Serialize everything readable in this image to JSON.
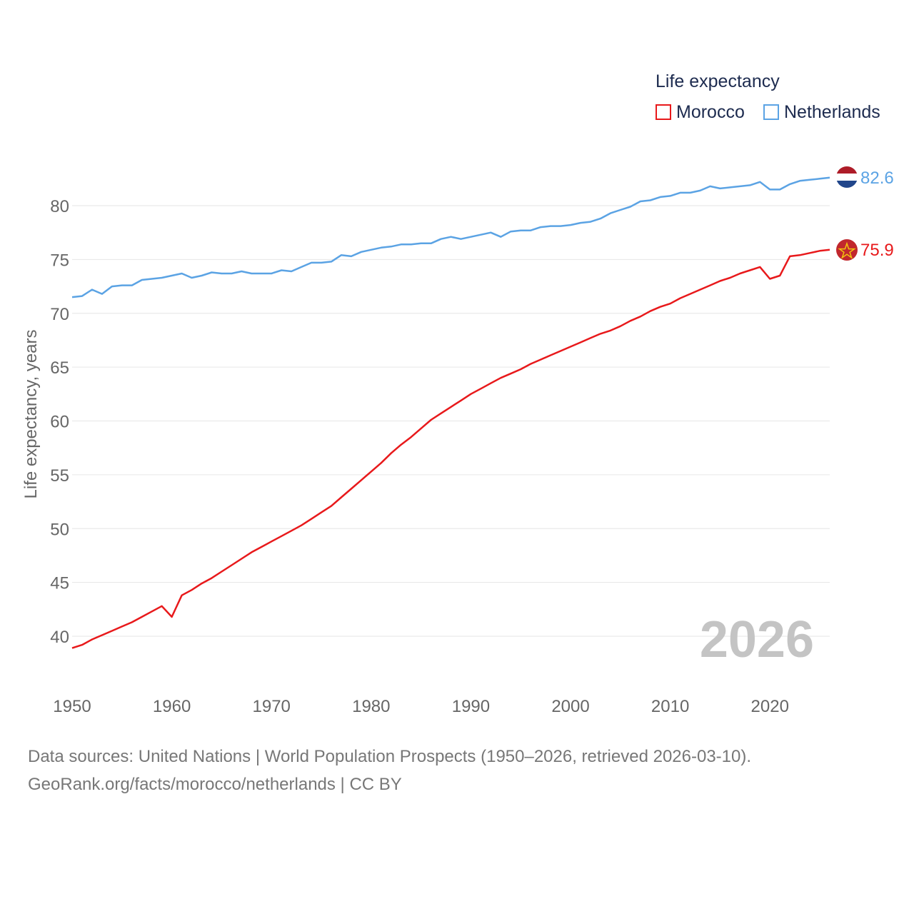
{
  "colors": {
    "morocco": "#e8191b",
    "netherlands": "#5ba3e4",
    "grid": "#e6e6e6",
    "tick_text": "#666666",
    "year_watermark": "#c4c4c4"
  },
  "legend": {
    "title": "Life expectancy",
    "items": [
      {
        "label": "Morocco",
        "color": "#e8191b"
      },
      {
        "label": "Netherlands",
        "color": "#5ba3e4"
      }
    ]
  },
  "current_year": "2026",
  "source": {
    "line1": "Data sources: United Nations | World Population Prospects (1950–2026, retrieved 2026-03-10).",
    "line2": "GeoRank.org/facts/morocco/netherlands | CC BY"
  },
  "chart_data": {
    "type": "line",
    "title": "Life expectancy",
    "xlabel": "",
    "ylabel": "Life expectancy, years",
    "xlim": [
      1950,
      2026
    ],
    "ylim": [
      37,
      84
    ],
    "x_ticks": [
      "1950",
      "1960",
      "1970",
      "1980",
      "1990",
      "2000",
      "2010",
      "2020"
    ],
    "y_ticks": [
      "40",
      "45",
      "50",
      "55",
      "60",
      "65",
      "70",
      "75",
      "80"
    ],
    "grid": true,
    "legend_position": "top-right",
    "x": [
      1950,
      1951,
      1952,
      1953,
      1954,
      1955,
      1956,
      1957,
      1958,
      1959,
      1960,
      1961,
      1962,
      1963,
      1964,
      1965,
      1966,
      1967,
      1968,
      1969,
      1970,
      1971,
      1972,
      1973,
      1974,
      1975,
      1976,
      1977,
      1978,
      1979,
      1980,
      1981,
      1982,
      1983,
      1984,
      1985,
      1986,
      1987,
      1988,
      1989,
      1990,
      1991,
      1992,
      1993,
      1994,
      1995,
      1996,
      1997,
      1998,
      1999,
      2000,
      2001,
      2002,
      2003,
      2004,
      2005,
      2006,
      2007,
      2008,
      2009,
      2010,
      2011,
      2012,
      2013,
      2014,
      2015,
      2016,
      2017,
      2018,
      2019,
      2020,
      2021,
      2022,
      2023,
      2024,
      2025,
      2026
    ],
    "series": [
      {
        "name": "Morocco",
        "end_label": "75.9",
        "values": [
          38.9,
          39.2,
          39.7,
          40.1,
          40.5,
          40.9,
          41.3,
          41.8,
          42.3,
          42.8,
          41.8,
          43.8,
          44.3,
          44.9,
          45.4,
          46.0,
          46.6,
          47.2,
          47.8,
          48.3,
          48.8,
          49.3,
          49.8,
          50.3,
          50.9,
          51.5,
          52.1,
          52.9,
          53.7,
          54.5,
          55.3,
          56.1,
          57.0,
          57.8,
          58.5,
          59.3,
          60.1,
          60.7,
          61.3,
          61.9,
          62.5,
          63.0,
          63.5,
          64.0,
          64.4,
          64.8,
          65.3,
          65.7,
          66.1,
          66.5,
          66.9,
          67.3,
          67.7,
          68.1,
          68.4,
          68.8,
          69.3,
          69.7,
          70.2,
          70.6,
          70.9,
          71.4,
          71.8,
          72.2,
          72.6,
          73.0,
          73.3,
          73.7,
          74.0,
          74.3,
          73.2,
          73.5,
          75.3,
          75.4,
          75.6,
          75.8,
          75.9
        ]
      },
      {
        "name": "Netherlands",
        "end_label": "82.6",
        "values": [
          71.5,
          71.6,
          72.2,
          71.8,
          72.5,
          72.6,
          72.6,
          73.1,
          73.2,
          73.3,
          73.5,
          73.7,
          73.3,
          73.5,
          73.8,
          73.7,
          73.7,
          73.9,
          73.7,
          73.7,
          73.7,
          74.0,
          73.9,
          74.3,
          74.7,
          74.7,
          74.8,
          75.4,
          75.3,
          75.7,
          75.9,
          76.1,
          76.2,
          76.4,
          76.4,
          76.5,
          76.5,
          76.9,
          77.1,
          76.9,
          77.1,
          77.3,
          77.5,
          77.1,
          77.6,
          77.7,
          77.7,
          78.0,
          78.1,
          78.1,
          78.2,
          78.4,
          78.5,
          78.8,
          79.3,
          79.6,
          79.9,
          80.4,
          80.5,
          80.8,
          80.9,
          81.2,
          81.2,
          81.4,
          81.8,
          81.6,
          81.7,
          81.8,
          81.9,
          82.2,
          81.5,
          81.5,
          82.0,
          82.3,
          82.4,
          82.5,
          82.6
        ]
      }
    ]
  }
}
